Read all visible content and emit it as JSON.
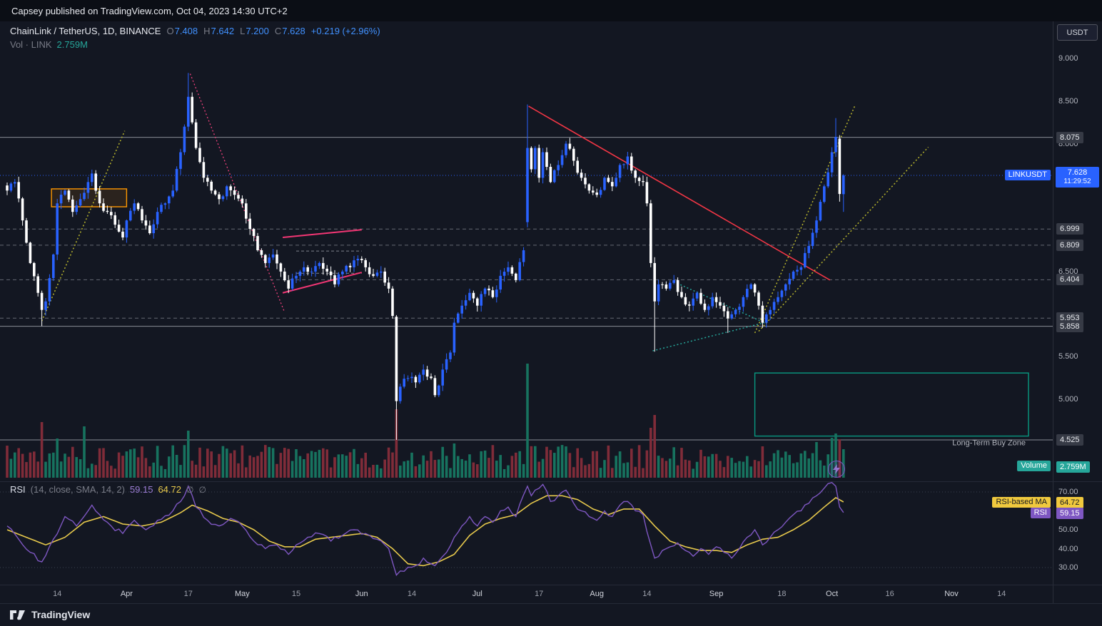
{
  "banner": {
    "text": "Capsey published on TradingView.com, Oct 04, 2023 14:30 UTC+2"
  },
  "header": {
    "symbol": "ChainLink / TetherUS, 1D, BINANCE",
    "o_label": "O",
    "o": "7.408",
    "h_label": "H",
    "h": "7.642",
    "l_label": "L",
    "l": "7.200",
    "c_label": "C",
    "c": "7.628",
    "change": "+0.219 (+2.96%)",
    "vol_label": "Vol · LINK",
    "vol_value": "2.759M"
  },
  "axis": {
    "currency_button": "USDT"
  },
  "rsi_legend": {
    "title": "RSI",
    "params": "(14, close, SMA, 14, 2)",
    "rsi": "59.15",
    "ma": "64.72",
    "hidden1": "∅",
    "hidden2": "∅"
  },
  "footer": {
    "brand": "TradingView"
  },
  "chart_data": {
    "type": "candlestick",
    "symbol": "LINKUSDT",
    "interval": "1D",
    "exchange": "BINANCE",
    "days": 217,
    "last": {
      "o": 7.408,
      "h": 7.642,
      "l": 7.2,
      "c": 7.628,
      "change": 0.219,
      "change_pct": 2.96,
      "volume": "2.759M"
    },
    "current": {
      "price": "7.628",
      "countdown": "11:29:52",
      "tag": "LINKUSDT",
      "value": 7.628
    },
    "volume_badge": {
      "label": "Volume",
      "value": "2.759M"
    },
    "rsi_badges": {
      "ma_label": "RSI-based MA",
      "ma_value": "64.72",
      "rsi_label": "RSI",
      "rsi_value": "59.15"
    },
    "colors": {
      "up": "#2962ff",
      "down": "#ffffff",
      "vol_up": "#17735f",
      "vol_down": "#802c39",
      "rsi": "#7e57c2",
      "rsi_ma": "#e7c94c",
      "level": "#c9cdd6",
      "current": "#2962ff",
      "olive": "#b8b52c",
      "pink": "#f23674",
      "magenta": "#ec407a",
      "red": "#f23645",
      "teal": "#26a69a",
      "orange": "#ff9800",
      "green": "#089981"
    },
    "y_ticks": [
      [
        "9.000",
        9.0
      ],
      [
        "8.500",
        8.5
      ],
      [
        "8.000",
        8.0
      ],
      [
        "6.500",
        6.5
      ],
      [
        "5.500",
        5.5
      ],
      [
        "5.000",
        5.0
      ]
    ],
    "rsi_y_ticks": [
      [
        "70.00",
        70
      ],
      [
        "50.00",
        50
      ],
      [
        "40.00",
        40
      ],
      [
        "30.00",
        30
      ]
    ],
    "x_ticks": [
      [
        "14",
        13
      ],
      [
        "Apr",
        31
      ],
      [
        "17",
        47
      ],
      [
        "May",
        61
      ],
      [
        "15",
        75
      ],
      [
        "Jun",
        92
      ],
      [
        "14",
        105
      ],
      [
        "Jul",
        122
      ],
      [
        "17",
        138
      ],
      [
        "Aug",
        153
      ],
      [
        "14",
        166
      ],
      [
        "Sep",
        184
      ],
      [
        "18",
        201
      ],
      [
        "Oct",
        214
      ],
      [
        "16",
        229
      ],
      [
        "Nov",
        245
      ],
      [
        "14",
        258
      ]
    ],
    "levels": [
      {
        "label": "8.075",
        "p": 8.075,
        "style": "solid"
      },
      {
        "label": "6.999",
        "p": 6.999,
        "style": "dashed"
      },
      {
        "label": "6.809",
        "p": 6.809,
        "style": "dashed"
      },
      {
        "label": "6.404",
        "p": 6.404,
        "style": "dashed"
      },
      {
        "label": "5.953",
        "p": 5.953,
        "style": "dashed"
      },
      {
        "label": "5.858",
        "p": 5.858,
        "style": "solid"
      },
      {
        "label": "4.525",
        "p": 4.525,
        "style": "solid"
      }
    ],
    "segments": [
      {
        "d1": 75,
        "d2": 92,
        "p": 6.74
      },
      {
        "d1": 75,
        "d2": 92,
        "p": 6.48
      }
    ],
    "boxes": [
      {
        "name": "orange-range-box",
        "d1": 11.5,
        "d2": 31,
        "p1": 7.26,
        "p2": 7.47,
        "stroke": "#ff9800",
        "fill": "rgba(255,152,0,0.10)",
        "label": ""
      },
      {
        "name": "long-term-buy-zone",
        "d1": 194,
        "d2": 265,
        "p1": 4.57,
        "p2": 5.31,
        "stroke": "#089981",
        "fill": "none",
        "label": "Long-Term Buy Zone"
      }
    ],
    "trendlines": [
      {
        "name": "olive-rising-march",
        "d1": 9,
        "p1": 5.92,
        "d2": 30.5,
        "p2": 8.15,
        "color": "#b8b52c",
        "dash": "2 3",
        "w": 1.5
      },
      {
        "name": "magenta-falling-april",
        "d1": 47.5,
        "p1": 8.82,
        "d2": 72,
        "p2": 6.02,
        "color": "#ec407a",
        "dash": "2 3",
        "w": 1.3
      },
      {
        "name": "pink-flag-upper",
        "d1": 71.5,
        "p1": 6.9,
        "d2": 92,
        "p2": 6.99,
        "color": "#f23674",
        "dash": "",
        "w": 2
      },
      {
        "name": "pink-flag-lower",
        "d1": 71.5,
        "p1": 6.25,
        "d2": 92,
        "p2": 6.49,
        "color": "#f23674",
        "dash": "",
        "w": 2
      },
      {
        "name": "red-falling-july-oct",
        "d1": 135.3,
        "p1": 8.44,
        "d2": 213.5,
        "p2": 6.4,
        "color": "#f23645",
        "dash": "",
        "w": 1.6
      },
      {
        "name": "teal-wedge-upper",
        "d1": 173,
        "p1": 6.38,
        "d2": 196.5,
        "p2": 5.9,
        "color": "#26a69a",
        "dash": "2 3",
        "w": 1.5
      },
      {
        "name": "teal-wedge-lower",
        "d1": 167.5,
        "p1": 5.57,
        "d2": 196.5,
        "p2": 5.9,
        "color": "#26a69a",
        "dash": "2 3",
        "w": 1.5
      },
      {
        "name": "olive-rising-steep",
        "d1": 194,
        "p1": 5.78,
        "d2": 220,
        "p2": 8.45,
        "color": "#b8b52c",
        "dash": "2 3",
        "w": 1.5
      },
      {
        "name": "olive-rising-long",
        "d1": 195,
        "p1": 5.8,
        "d2": 239,
        "p2": 7.96,
        "color": "#b8b52c",
        "dash": "2 3",
        "w": 1.5
      }
    ],
    "close_anchors": [
      [
        0,
        7.45
      ],
      [
        2,
        7.55
      ],
      [
        4,
        7.1
      ],
      [
        6,
        6.6
      ],
      [
        8,
        6.25
      ],
      [
        9,
        6.05
      ],
      [
        10,
        6.15
      ],
      [
        12,
        6.7
      ],
      [
        13,
        7.3
      ],
      [
        15,
        7.45
      ],
      [
        17,
        7.2
      ],
      [
        19,
        7.35
      ],
      [
        21,
        7.55
      ],
      [
        22,
        7.65
      ],
      [
        24,
        7.3
      ],
      [
        26,
        7.2
      ],
      [
        28,
        7.05
      ],
      [
        30,
        6.9
      ],
      [
        31,
        7.1
      ],
      [
        33,
        7.3
      ],
      [
        35,
        7.1
      ],
      [
        37,
        6.95
      ],
      [
        39,
        7.2
      ],
      [
        41,
        7.3
      ],
      [
        43,
        7.45
      ],
      [
        45,
        7.9
      ],
      [
        46,
        8.2
      ],
      [
        47,
        8.55
      ],
      [
        48,
        8.25
      ],
      [
        49,
        7.95
      ],
      [
        51,
        7.6
      ],
      [
        53,
        7.45
      ],
      [
        55,
        7.35
      ],
      [
        57,
        7.5
      ],
      [
        59,
        7.4
      ],
      [
        61,
        7.3
      ],
      [
        63,
        7.0
      ],
      [
        65,
        6.75
      ],
      [
        67,
        6.6
      ],
      [
        69,
        6.7
      ],
      [
        71,
        6.5
      ],
      [
        73,
        6.3
      ],
      [
        75,
        6.45
      ],
      [
        77,
        6.55
      ],
      [
        79,
        6.5
      ],
      [
        81,
        6.6
      ],
      [
        83,
        6.5
      ],
      [
        85,
        6.35
      ],
      [
        87,
        6.5
      ],
      [
        89,
        6.55
      ],
      [
        91,
        6.65
      ],
      [
        93,
        6.55
      ],
      [
        95,
        6.45
      ],
      [
        97,
        6.5
      ],
      [
        99,
        6.3
      ],
      [
        100,
        5.98
      ],
      [
        101,
        4.98
      ],
      [
        102,
        5.15
      ],
      [
        104,
        5.25
      ],
      [
        106,
        5.2
      ],
      [
        108,
        5.35
      ],
      [
        110,
        5.25
      ],
      [
        111,
        5.05
      ],
      [
        113,
        5.35
      ],
      [
        115,
        5.55
      ],
      [
        116,
        5.9
      ],
      [
        118,
        6.1
      ],
      [
        120,
        6.25
      ],
      [
        122,
        6.1
      ],
      [
        124,
        6.3
      ],
      [
        126,
        6.2
      ],
      [
        128,
        6.45
      ],
      [
        130,
        6.55
      ],
      [
        132,
        6.4
      ],
      [
        134,
        6.75
      ],
      [
        135,
        7.95
      ],
      [
        136,
        7.7
      ],
      [
        137,
        7.95
      ],
      [
        138,
        7.6
      ],
      [
        139,
        7.9
      ],
      [
        141,
        7.55
      ],
      [
        143,
        7.75
      ],
      [
        145,
        8.0
      ],
      [
        147,
        7.8
      ],
      [
        149,
        7.6
      ],
      [
        151,
        7.45
      ],
      [
        153,
        7.4
      ],
      [
        155,
        7.6
      ],
      [
        157,
        7.5
      ],
      [
        159,
        7.75
      ],
      [
        161,
        7.85
      ],
      [
        163,
        7.6
      ],
      [
        165,
        7.55
      ],
      [
        166,
        7.3
      ],
      [
        167,
        6.6
      ],
      [
        168,
        6.15
      ],
      [
        169,
        6.35
      ],
      [
        171,
        6.3
      ],
      [
        173,
        6.4
      ],
      [
        175,
        6.2
      ],
      [
        177,
        6.1
      ],
      [
        179,
        6.25
      ],
      [
        181,
        6.05
      ],
      [
        183,
        6.2
      ],
      [
        185,
        6.1
      ],
      [
        187,
        5.95
      ],
      [
        189,
        6.05
      ],
      [
        191,
        6.2
      ],
      [
        193,
        6.35
      ],
      [
        195,
        6.1
      ],
      [
        196,
        5.9
      ],
      [
        198,
        6.05
      ],
      [
        200,
        6.2
      ],
      [
        202,
        6.35
      ],
      [
        204,
        6.5
      ],
      [
        206,
        6.55
      ],
      [
        208,
        6.8
      ],
      [
        210,
        7.1
      ],
      [
        212,
        7.5
      ],
      [
        214,
        7.9
      ],
      [
        215,
        8.08
      ],
      [
        216,
        7.41
      ],
      [
        217,
        7.628
      ]
    ],
    "overrides": [
      {
        "d": 9,
        "l": 5.86
      },
      {
        "d": 47,
        "h": 8.83
      },
      {
        "d": 101,
        "o": 5.97,
        "h": 5.99,
        "c": 4.98,
        "l": 4.525
      },
      {
        "d": 135,
        "o": 7.08,
        "h": 8.46,
        "l": 7.02,
        "c": 7.95
      },
      {
        "d": 168,
        "l": 5.56
      },
      {
        "d": 187,
        "l": 5.78
      },
      {
        "d": 196,
        "l": 5.84
      },
      {
        "d": 215,
        "h": 8.3
      },
      {
        "d": 216,
        "o": 8.06,
        "h": 8.1,
        "l": 7.32,
        "c": 7.41
      },
      {
        "d": 217,
        "o": 7.408,
        "h": 7.642,
        "l": 7.2,
        "c": 7.628
      }
    ],
    "volume_overrides": [
      [
        9,
        78
      ],
      [
        13,
        55
      ],
      [
        20,
        72
      ],
      [
        47,
        66
      ],
      [
        75,
        40
      ],
      [
        101,
        96
      ],
      [
        116,
        48
      ],
      [
        135,
        160
      ],
      [
        167,
        70
      ],
      [
        168,
        88
      ],
      [
        196,
        44
      ],
      [
        210,
        50
      ],
      [
        214,
        56
      ],
      [
        215,
        62
      ],
      [
        216,
        54
      ],
      [
        217,
        40
      ]
    ],
    "rsi_anchors": [
      [
        0,
        52
      ],
      [
        3,
        45
      ],
      [
        6,
        38
      ],
      [
        9,
        33
      ],
      [
        12,
        45
      ],
      [
        15,
        57
      ],
      [
        18,
        52
      ],
      [
        22,
        63
      ],
      [
        24,
        58
      ],
      [
        27,
        52
      ],
      [
        30,
        48
      ],
      [
        33,
        55
      ],
      [
        36,
        50
      ],
      [
        39,
        55
      ],
      [
        43,
        60
      ],
      [
        46,
        68
      ],
      [
        47,
        73
      ],
      [
        49,
        62
      ],
      [
        52,
        55
      ],
      [
        55,
        52
      ],
      [
        58,
        56
      ],
      [
        61,
        52
      ],
      [
        64,
        44
      ],
      [
        67,
        40
      ],
      [
        70,
        42
      ],
      [
        73,
        37
      ],
      [
        75,
        42
      ],
      [
        78,
        46
      ],
      [
        81,
        48
      ],
      [
        84,
        44
      ],
      [
        87,
        47
      ],
      [
        90,
        50
      ],
      [
        93,
        48
      ],
      [
        96,
        45
      ],
      [
        99,
        40
      ],
      [
        101,
        26
      ],
      [
        103,
        28
      ],
      [
        106,
        31
      ],
      [
        108,
        35
      ],
      [
        111,
        31
      ],
      [
        114,
        38
      ],
      [
        116,
        46
      ],
      [
        118,
        52
      ],
      [
        120,
        57
      ],
      [
        122,
        52
      ],
      [
        124,
        57
      ],
      [
        126,
        54
      ],
      [
        128,
        60
      ],
      [
        130,
        62
      ],
      [
        132,
        57
      ],
      [
        135,
        73
      ],
      [
        136,
        68
      ],
      [
        137,
        71
      ],
      [
        139,
        74
      ],
      [
        141,
        65
      ],
      [
        143,
        68
      ],
      [
        145,
        71
      ],
      [
        147,
        64
      ],
      [
        149,
        60
      ],
      [
        151,
        57
      ],
      [
        153,
        55
      ],
      [
        155,
        60
      ],
      [
        157,
        57
      ],
      [
        159,
        63
      ],
      [
        161,
        65
      ],
      [
        163,
        60
      ],
      [
        165,
        58
      ],
      [
        167,
        42
      ],
      [
        168,
        35
      ],
      [
        170,
        39
      ],
      [
        172,
        41
      ],
      [
        174,
        43
      ],
      [
        176,
        39
      ],
      [
        178,
        36
      ],
      [
        180,
        40
      ],
      [
        182,
        37
      ],
      [
        184,
        41
      ],
      [
        186,
        38
      ],
      [
        188,
        35
      ],
      [
        190,
        40
      ],
      [
        192,
        46
      ],
      [
        194,
        50
      ],
      [
        196,
        42
      ],
      [
        198,
        46
      ],
      [
        200,
        50
      ],
      [
        202,
        54
      ],
      [
        204,
        58
      ],
      [
        206,
        60
      ],
      [
        208,
        64
      ],
      [
        210,
        68
      ],
      [
        212,
        72
      ],
      [
        214,
        75
      ],
      [
        215,
        73
      ],
      [
        216,
        62
      ],
      [
        217,
        59.15
      ]
    ],
    "ma_anchors": [
      [
        0,
        50
      ],
      [
        5,
        46
      ],
      [
        10,
        42
      ],
      [
        15,
        46
      ],
      [
        20,
        54
      ],
      [
        25,
        57
      ],
      [
        30,
        53
      ],
      [
        35,
        52
      ],
      [
        40,
        54
      ],
      [
        45,
        59
      ],
      [
        48,
        63
      ],
      [
        52,
        60
      ],
      [
        56,
        56
      ],
      [
        60,
        54
      ],
      [
        64,
        50
      ],
      [
        68,
        44
      ],
      [
        72,
        41
      ],
      [
        76,
        41
      ],
      [
        80,
        45
      ],
      [
        84,
        46
      ],
      [
        88,
        47
      ],
      [
        92,
        48
      ],
      [
        96,
        46
      ],
      [
        100,
        40
      ],
      [
        104,
        32
      ],
      [
        108,
        31
      ],
      [
        112,
        33
      ],
      [
        116,
        37
      ],
      [
        120,
        47
      ],
      [
        124,
        53
      ],
      [
        128,
        56
      ],
      [
        132,
        58
      ],
      [
        136,
        64
      ],
      [
        140,
        68
      ],
      [
        144,
        68
      ],
      [
        148,
        66
      ],
      [
        152,
        61
      ],
      [
        156,
        58
      ],
      [
        160,
        61
      ],
      [
        164,
        61
      ],
      [
        168,
        52
      ],
      [
        172,
        44
      ],
      [
        176,
        41
      ],
      [
        180,
        39
      ],
      [
        184,
        39
      ],
      [
        188,
        38
      ],
      [
        192,
        42
      ],
      [
        196,
        45
      ],
      [
        200,
        46
      ],
      [
        204,
        50
      ],
      [
        208,
        55
      ],
      [
        212,
        62
      ],
      [
        215,
        67
      ],
      [
        217,
        64.72
      ]
    ]
  }
}
